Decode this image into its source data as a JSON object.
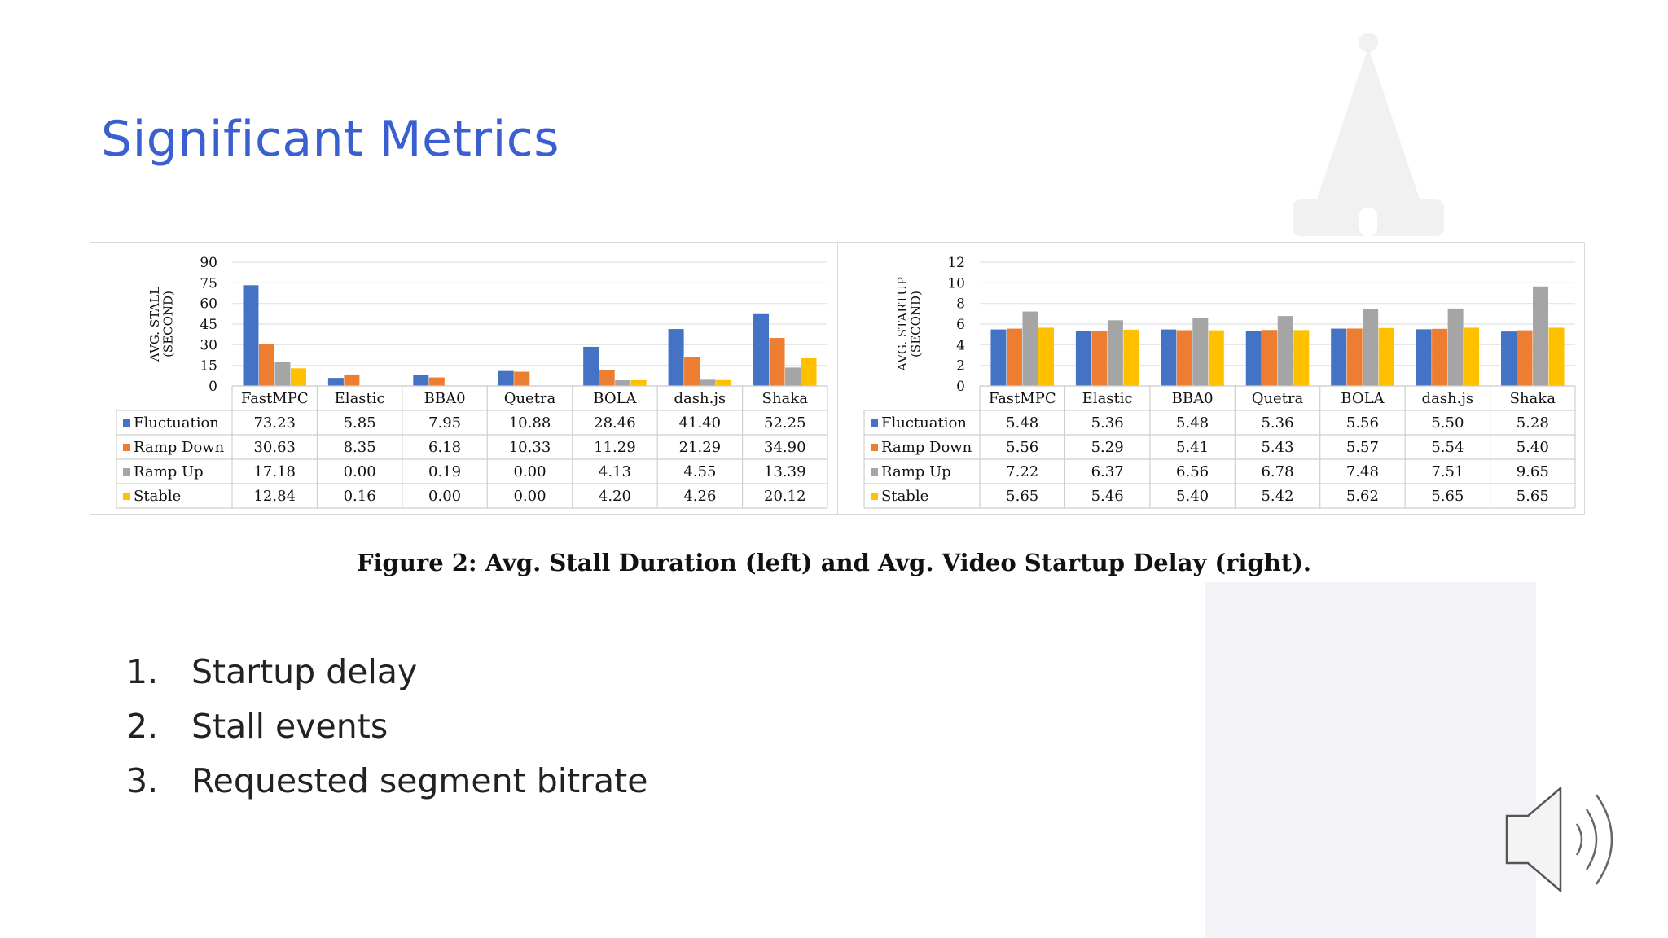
{
  "slide": {
    "title": "Significant Metrics",
    "caption": "Figure 2: Avg. Stall Duration (left) and Avg. Video Startup Delay (right).",
    "bullets": [
      {
        "num": "1.",
        "text": "Startup delay"
      },
      {
        "num": "2.",
        "text": "Stall events"
      },
      {
        "num": "3.",
        "text": "Requested segment bitrate"
      }
    ]
  },
  "icons": {
    "watermark": "building-tower-icon",
    "speaker": "speaker-icon"
  },
  "colors": {
    "title": "#3a5fd1",
    "Fluctuation": "#4472c4",
    "Ramp Down": "#ed7d31",
    "Ramp Up": "#a5a5a5",
    "Stable": "#ffc000"
  },
  "chart_data": [
    {
      "type": "bar",
      "title": "",
      "xlabel": "",
      "ylabel": "AVG. STALL (SECOND)",
      "ylim": [
        0,
        90
      ],
      "yticks": [
        0,
        15,
        30,
        45,
        60,
        75,
        90
      ],
      "grid": true,
      "legend": "data-table",
      "categories": [
        "FastMPC",
        "Elastic",
        "BBA0",
        "Quetra",
        "BOLA",
        "dash.js",
        "Shaka"
      ],
      "series": [
        {
          "name": "Fluctuation",
          "values": [
            73.23,
            5.85,
            7.95,
            10.88,
            28.46,
            41.4,
            52.25
          ],
          "labels": [
            "73.23",
            "5.85",
            "7.95",
            "10.88",
            "28.46",
            "41.40",
            "52.25"
          ]
        },
        {
          "name": "Ramp Down",
          "values": [
            30.63,
            8.35,
            6.18,
            10.33,
            11.29,
            21.29,
            34.9
          ],
          "labels": [
            "30.63",
            "8.35",
            "6.18",
            "10.33",
            "11.29",
            "21.29",
            "34.90"
          ]
        },
        {
          "name": "Ramp Up",
          "values": [
            17.18,
            0.0,
            0.19,
            0.0,
            4.13,
            4.55,
            13.39
          ],
          "labels": [
            "17.18",
            "0.00",
            "0.19",
            "0.00",
            "4.13",
            "4.55",
            "13.39"
          ]
        },
        {
          "name": "Stable",
          "values": [
            12.84,
            0.16,
            0.0,
            0.0,
            4.2,
            4.26,
            20.12
          ],
          "labels": [
            "12.84",
            "0.16",
            "0.00",
            "0.00",
            "4.20",
            "4.26",
            "20.12"
          ]
        }
      ]
    },
    {
      "type": "bar",
      "title": "",
      "xlabel": "",
      "ylabel": "AVG. STARTUP (SECOND)",
      "ylim": [
        0,
        12
      ],
      "yticks": [
        0,
        2,
        4,
        6,
        8,
        10,
        12
      ],
      "grid": true,
      "legend": "data-table",
      "categories": [
        "FastMPC",
        "Elastic",
        "BBA0",
        "Quetra",
        "BOLA",
        "dash.js",
        "Shaka"
      ],
      "series": [
        {
          "name": "Fluctuation",
          "values": [
            5.48,
            5.36,
            5.48,
            5.36,
            5.56,
            5.5,
            5.28
          ],
          "labels": [
            "5.48",
            "5.36",
            "5.48",
            "5.36",
            "5.56",
            "5.50",
            "5.28"
          ]
        },
        {
          "name": "Ramp Down",
          "values": [
            5.56,
            5.29,
            5.41,
            5.43,
            5.57,
            5.54,
            5.4
          ],
          "labels": [
            "5.56",
            "5.29",
            "5.41",
            "5.43",
            "5.57",
            "5.54",
            "5.40"
          ]
        },
        {
          "name": "Ramp Up",
          "values": [
            7.22,
            6.37,
            6.56,
            6.78,
            7.48,
            7.51,
            9.65
          ],
          "labels": [
            "7.22",
            "6.37",
            "6.56",
            "6.78",
            "7.48",
            "7.51",
            "9.65"
          ]
        },
        {
          "name": "Stable",
          "values": [
            5.65,
            5.46,
            5.4,
            5.42,
            5.62,
            5.65,
            5.65
          ],
          "labels": [
            "5.65",
            "5.46",
            "5.40",
            "5.42",
            "5.62",
            "5.65",
            "5.65"
          ]
        }
      ]
    }
  ]
}
